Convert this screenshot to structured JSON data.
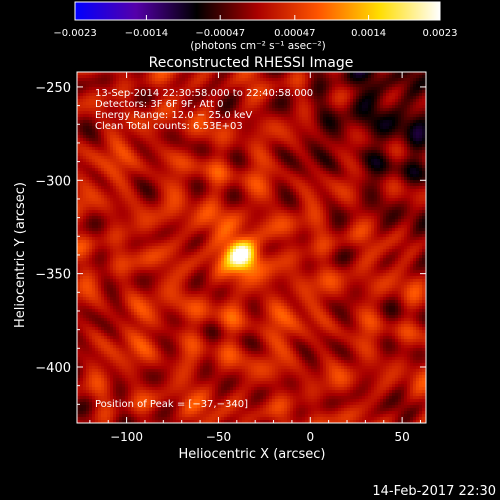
{
  "chart_data": {
    "type": "heatmap",
    "title": "Reconstructed RHESSI Image",
    "xlabel": "Heliocentric X (arcsec)",
    "ylabel": "Heliocentric Y (arcsec)",
    "xlim": [
      -127,
      63
    ],
    "ylim": [
      -430,
      -242
    ],
    "x_ticks": [
      -100,
      -50,
      0,
      50
    ],
    "x_tick_labels": [
      "−100",
      "−50",
      "0",
      "50"
    ],
    "y_ticks": [
      -250,
      -300,
      -350,
      -400
    ],
    "y_tick_labels": [
      "−250",
      "−300",
      "−350",
      "−400"
    ],
    "colorbar": {
      "range": [
        -0.0023,
        0.0023
      ],
      "ticks": [
        -0.0023,
        -0.0014,
        -0.00047,
        0.00047,
        0.0014,
        0.0023
      ],
      "tick_labels": [
        "−0.0023",
        "−0.0014",
        "−0.00047",
        "0.00047",
        "0.0014",
        "0.0023"
      ],
      "unit_label": "(photons cm⁻² s⁻¹ asec⁻²)",
      "colors": [
        "#0000ff",
        "#5500aa",
        "#000000",
        "#aa0000",
        "#ff5500",
        "#ffdd00",
        "#ffffff"
      ]
    },
    "annotations": [
      "13-Sep-2014 22:30:58.000 to 22:40:58.000",
      "Detectors: 3F 6F 9F, Att 0",
      "Energy Range: 12.0 − 25.0 keV",
      "Clean    Total counts: 6.53E+03"
    ],
    "peak_label": "Position of Peak = [−37,−340]",
    "peak": {
      "x": -37,
      "y": -340,
      "value": 0.0023
    },
    "grid": false,
    "legend": "none"
  },
  "footer": {
    "timestamp": "14-Feb-2017 22:30"
  }
}
